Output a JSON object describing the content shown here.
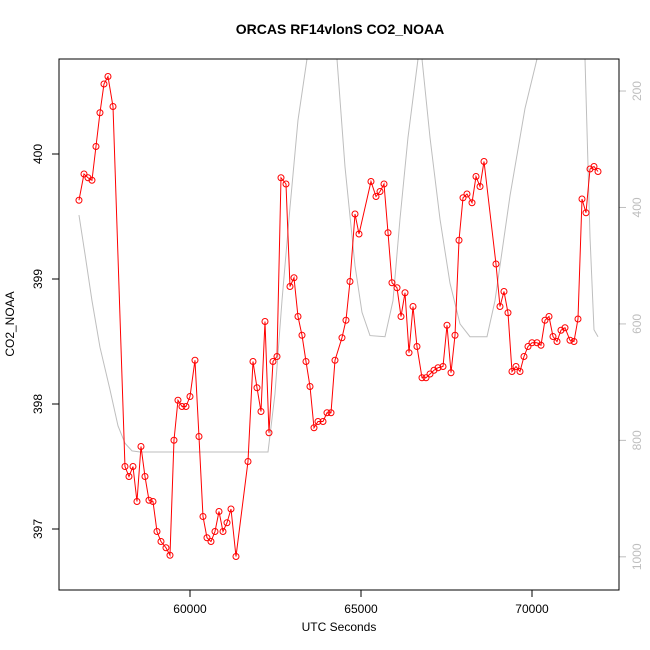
{
  "chart_data": {
    "type": "line",
    "title": "ORCAS RF14vlonS CO2_NOAA",
    "xlabel": "UTC Seconds",
    "ylabel": "CO2_NOAA",
    "xlim": [
      56170,
      72544
    ],
    "xticks": [
      60000,
      65000,
      70000
    ],
    "ylim": [
      396.512,
      400.76
    ],
    "yticks": [
      397,
      398,
      399,
      400
    ],
    "y2lim": [
      1057,
      145
    ],
    "y2ticks": [
      200,
      400,
      600,
      800,
      1000
    ],
    "series": [
      {
        "color": "#ff0000",
        "marker": "circle",
        "x": [
          56754,
          56901,
          57018,
          57134,
          57251,
          57368,
          57485,
          57602,
          57749,
          58099,
          58216,
          58333,
          58450,
          58567,
          58684,
          58801,
          58918,
          59035,
          59152,
          59298,
          59415,
          59532,
          59649,
          59766,
          59883,
          60000,
          60146,
          60263,
          60380,
          60497,
          60614,
          60731,
          60848,
          60965,
          61082,
          61199,
          61345,
          61696,
          61842,
          61959,
          62076,
          62193,
          62310,
          62427,
          62544,
          62661,
          62807,
          62924,
          63041,
          63158,
          63275,
          63392,
          63509,
          63626,
          63743,
          63889,
          64006,
          64123,
          64240,
          64444,
          64561,
          64678,
          64825,
          64942,
          65292,
          65439,
          65556,
          65673,
          65790,
          65906,
          66053,
          66170,
          66287,
          66404,
          66521,
          66637,
          66784,
          66901,
          67018,
          67135,
          67252,
          67398,
          67515,
          67632,
          67749,
          67866,
          67983,
          68099,
          68246,
          68363,
          68480,
          68597,
          68947,
          69064,
          69181,
          69298,
          69415,
          69532,
          69649,
          69766,
          69883,
          70000,
          70146,
          70263,
          70380,
          70497,
          70614,
          70731,
          70848,
          70965,
          71111,
          71228,
          71345,
          71462,
          71579,
          71696,
          71813,
          71930
        ],
        "values": [
          399.63,
          399.84,
          399.81,
          399.79,
          400.06,
          400.33,
          400.56,
          400.62,
          400.38,
          397.5,
          397.42,
          397.5,
          397.22,
          397.66,
          397.42,
          397.23,
          397.22,
          396.98,
          396.9,
          396.85,
          396.79,
          397.71,
          398.03,
          397.98,
          397.98,
          398.06,
          398.35,
          397.74,
          397.1,
          396.93,
          396.9,
          396.98,
          397.14,
          396.98,
          397.05,
          397.16,
          396.78,
          397.54,
          398.34,
          398.13,
          397.94,
          398.66,
          397.77,
          398.34,
          398.38,
          399.81,
          399.76,
          398.94,
          399.01,
          398.7,
          398.55,
          398.34,
          398.14,
          397.81,
          397.86,
          397.86,
          397.93,
          397.93,
          398.35,
          398.53,
          398.67,
          398.98,
          399.52,
          399.36,
          399.78,
          399.66,
          399.7,
          399.76,
          399.37,
          398.97,
          398.93,
          398.7,
          398.89,
          398.41,
          398.78,
          398.46,
          398.21,
          398.21,
          398.24,
          398.27,
          398.29,
          398.3,
          398.63,
          398.25,
          398.55,
          399.31,
          399.65,
          399.68,
          399.61,
          399.82,
          399.74,
          399.94,
          399.12,
          398.78,
          398.9,
          398.73,
          398.26,
          398.3,
          398.26,
          398.38,
          398.46,
          398.49,
          398.49,
          398.47,
          398.67,
          398.7,
          398.54,
          398.5,
          398.59,
          398.61,
          398.51,
          398.5,
          398.68,
          399.64,
          399.53,
          399.88,
          399.9,
          399.86
        ]
      },
      {
        "color": "#bebebe",
        "axis": "y2",
        "x": [
          56754,
          56930,
          57134,
          57368,
          57661,
          57895,
          58099,
          58304,
          58538,
          62281,
          62485,
          62690,
          62924,
          63158,
          63421,
          64298,
          64532,
          64825,
          65029,
          65263,
          65702,
          65936,
          66140,
          66374,
          66667,
          66784,
          67018,
          67310,
          67602,
          67895,
          68187,
          68684,
          68918,
          69357,
          69795,
          70146,
          71550,
          71696,
          71813,
          71930
        ],
        "values": [
          413,
          480,
          560,
          640,
          713,
          775,
          805,
          818,
          820,
          820,
          720,
          560,
          400,
          250,
          145,
          145,
          330,
          500,
          580,
          620,
          622,
          560,
          420,
          280,
          145,
          145,
          280,
          420,
          530,
          600,
          622,
          622,
          560,
          380,
          230,
          145,
          145,
          450,
          610,
          622
        ]
      }
    ]
  }
}
